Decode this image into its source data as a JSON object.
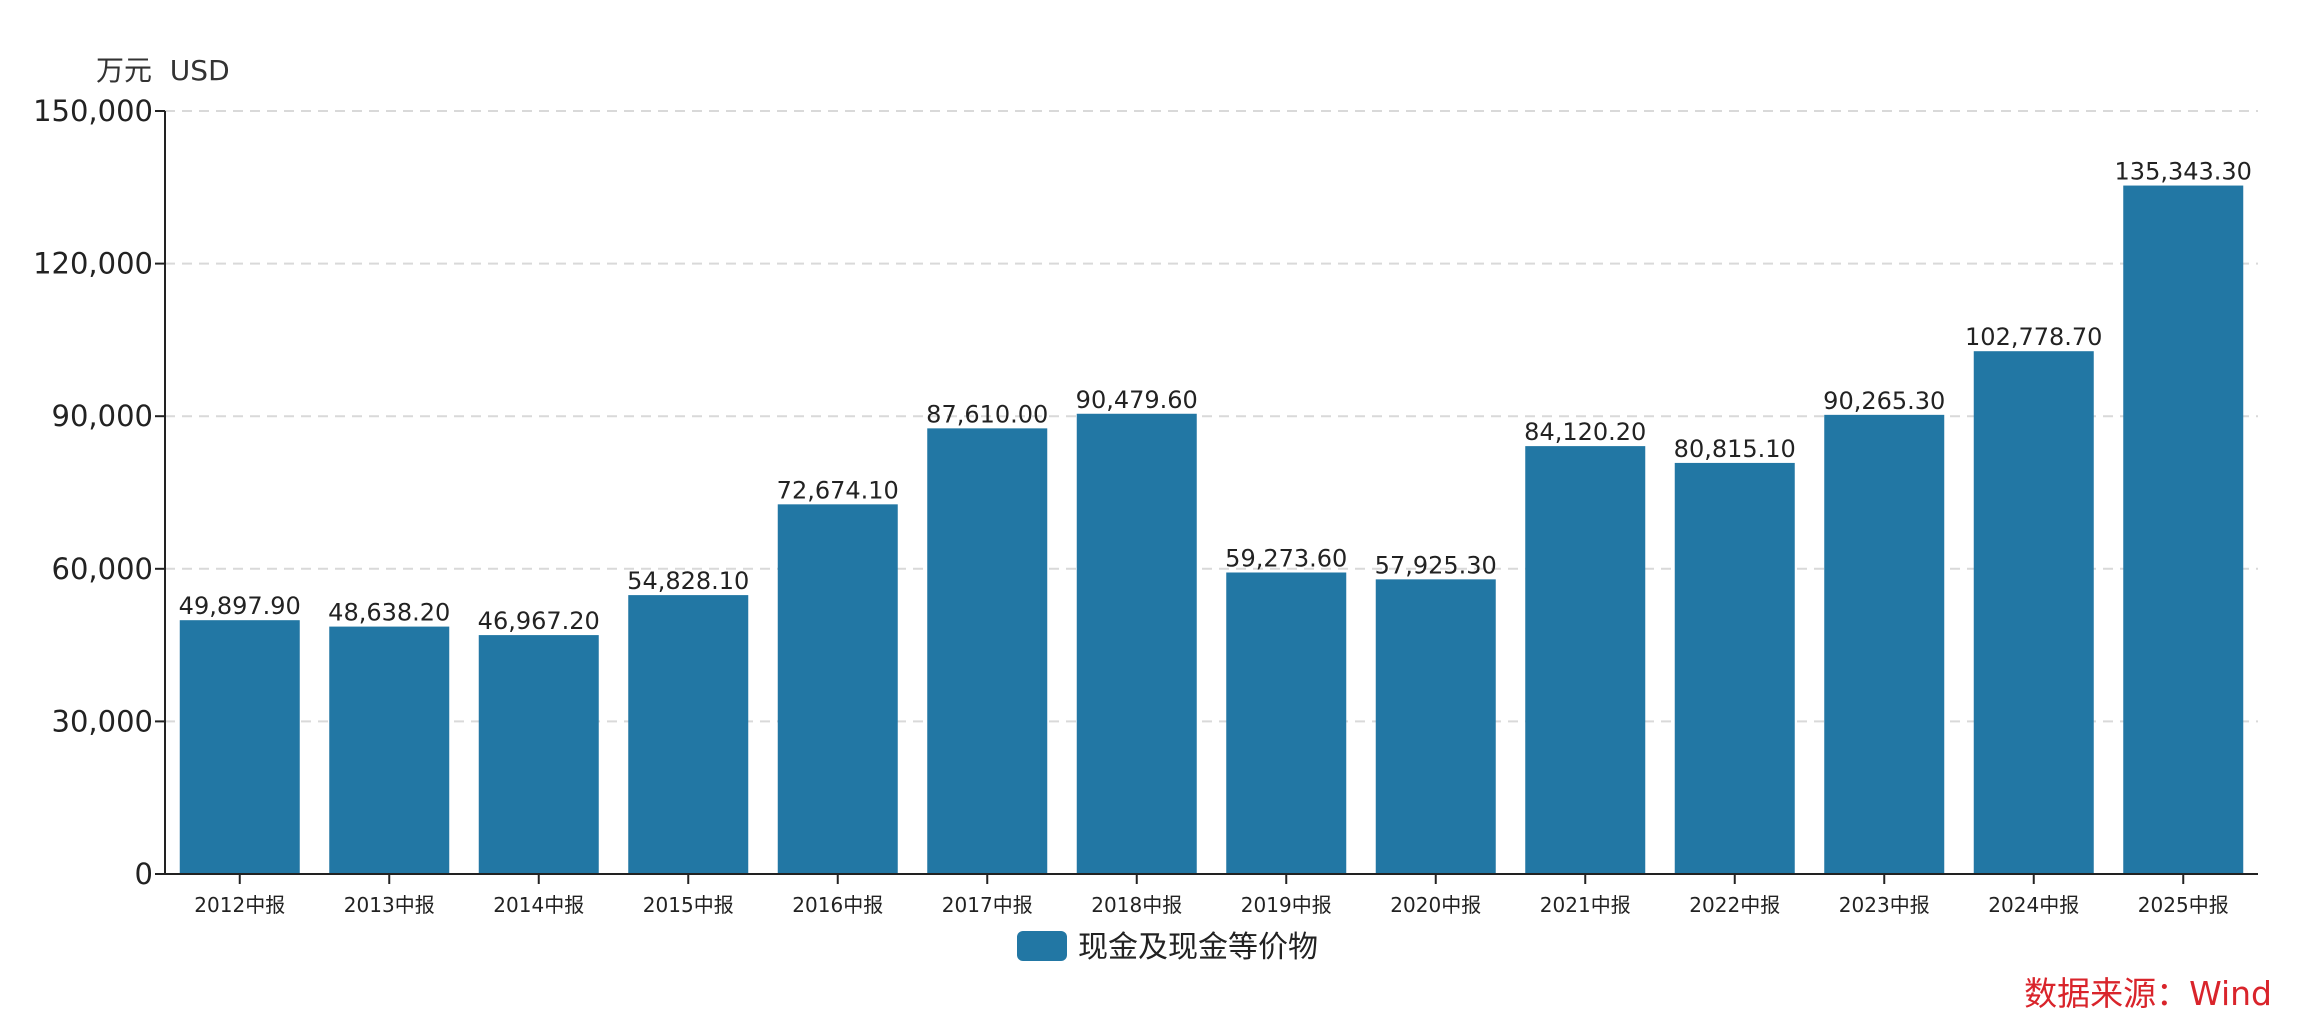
{
  "chart_data": {
    "type": "bar",
    "unit_label": "万元  USD",
    "categories": [
      "2012中报",
      "2013中报",
      "2014中报",
      "2015中报",
      "2016中报",
      "2017中报",
      "2018中报",
      "2019中报",
      "2020中报",
      "2021中报",
      "2022中报",
      "2023中报",
      "2024中报",
      "2025中报"
    ],
    "series": [
      {
        "name": "现金及现金等价物",
        "color": "#2277a4",
        "values": [
          49897.9,
          48638.2,
          46967.2,
          54828.1,
          72674.1,
          87610.0,
          90479.6,
          59273.6,
          57925.3,
          84120.2,
          80815.1,
          90265.3,
          102778.7,
          135343.3
        ],
        "value_labels": [
          "49,897.90",
          "48,638.20",
          "46,967.20",
          "54,828.10",
          "72,674.10",
          "87,610.00",
          "90,479.60",
          "59,273.60",
          "57,925.30",
          "84,120.20",
          "80,815.10",
          "90,265.30",
          "102,778.70",
          "135,343.30"
        ]
      }
    ],
    "ylim": [
      0,
      150000
    ],
    "yticks": [
      0,
      30000,
      60000,
      90000,
      120000,
      150000
    ],
    "ytick_labels": [
      "0",
      "30,000",
      "60,000",
      "90,000",
      "120,000",
      "150,000"
    ],
    "grid": true,
    "legend_position": "bottom-center",
    "source": "数据来源：Wind"
  }
}
